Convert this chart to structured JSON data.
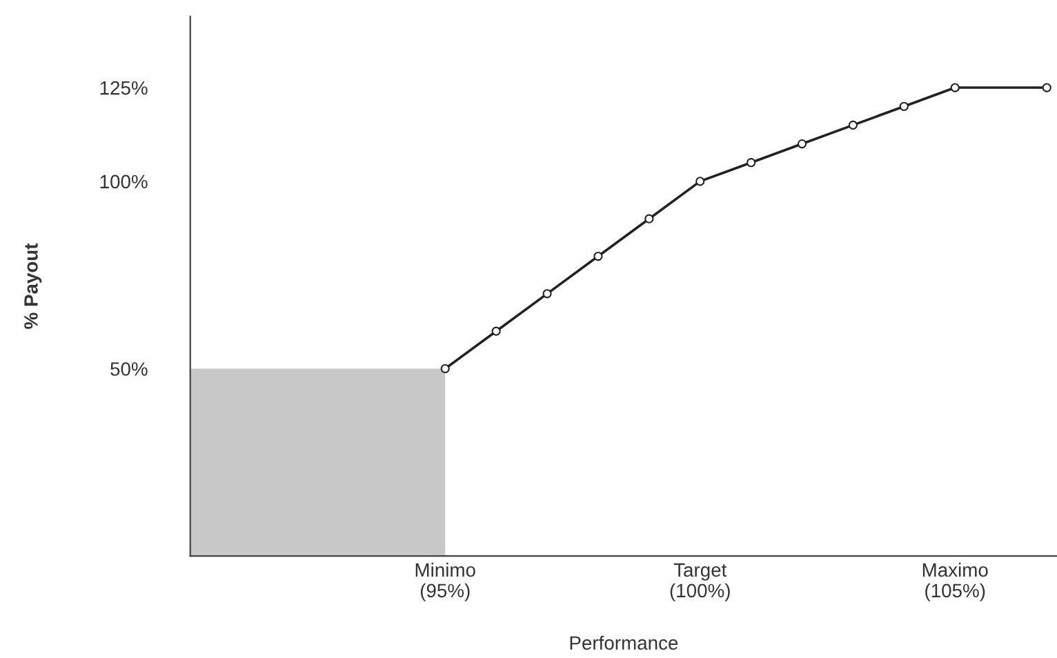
{
  "chart_data": {
    "type": "line",
    "xlabel": "Performance",
    "ylabel": "% Payout",
    "xlim": [
      90,
      107
    ],
    "ylim": [
      0,
      144
    ],
    "xticks": [
      {
        "value": 95,
        "label": "Minimo\n(95%)"
      },
      {
        "value": 100,
        "label": "Target\n(100%)"
      },
      {
        "value": 105,
        "label": "Maximo\n(105%)"
      }
    ],
    "yticks": [
      {
        "value": 50,
        "label": "50%"
      },
      {
        "value": 100,
        "label": "100%"
      },
      {
        "value": 125,
        "label": "125%"
      }
    ],
    "grid": false,
    "line_style": "solid",
    "series": [
      {
        "type": "area",
        "color": "#c8c8c8",
        "x": [
          90,
          95
        ],
        "values": [
          50,
          50
        ]
      },
      {
        "marker": "circle",
        "color": "#222222",
        "x": [
          95,
          96,
          97,
          98,
          99,
          100,
          101,
          102,
          103,
          104,
          105,
          106.8
        ],
        "values": [
          50,
          60,
          70,
          80,
          90,
          100,
          105,
          110,
          115,
          120,
          125,
          125
        ]
      }
    ]
  }
}
